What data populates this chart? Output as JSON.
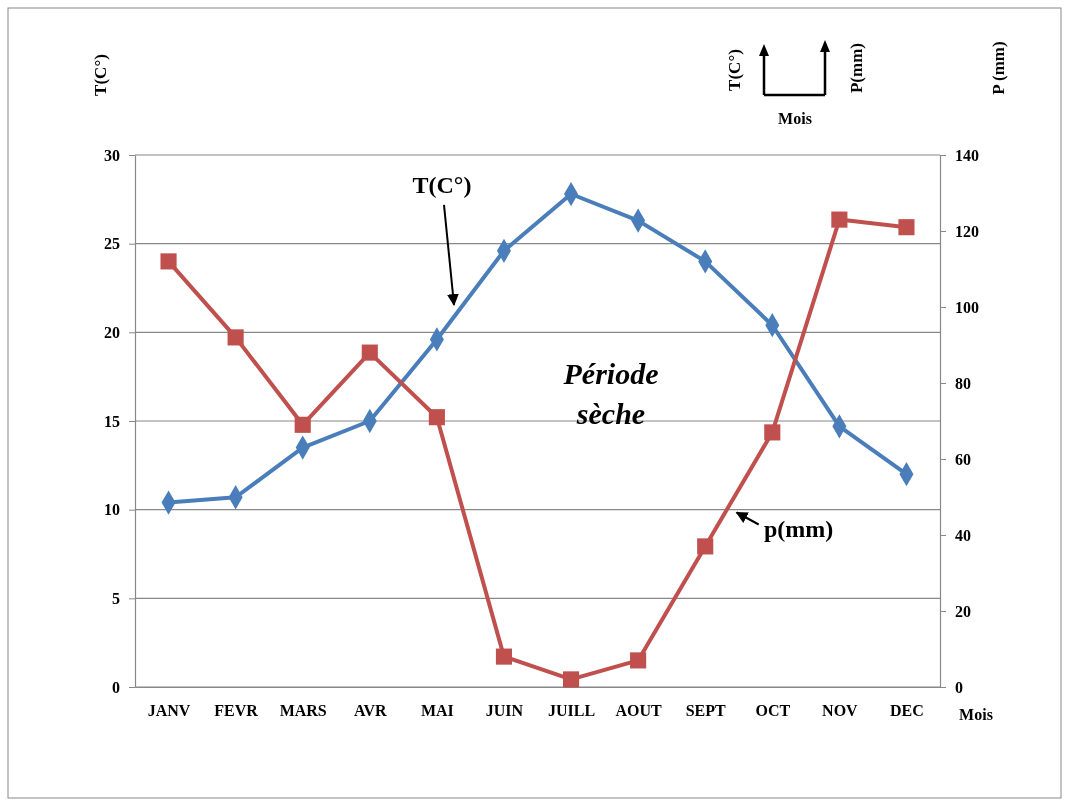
{
  "chart_data": {
    "type": "line",
    "categories": [
      "JANV",
      "FEVR",
      "MARS",
      "AVR",
      "MAI",
      "JUIN",
      "JUILL",
      "AOUT",
      "SEPT",
      "OCT",
      "NOV",
      "DEC"
    ],
    "series": [
      {
        "name": "T(C°)",
        "color": "#4a7ebb",
        "marker": "diamond",
        "values": [
          10.4,
          10.7,
          13.5,
          15.0,
          19.6,
          24.6,
          27.8,
          26.3,
          24.0,
          20.4,
          14.7,
          12.0
        ]
      },
      {
        "name": "p(mm)",
        "color": "#c0504d",
        "marker": "square",
        "axis": "y2",
        "values": [
          112,
          92,
          69,
          88,
          71,
          8,
          2,
          7,
          37,
          67,
          123,
          121
        ]
      }
    ],
    "ylabel": "T(C°)",
    "y2label": "P (mm)",
    "xlabel": "Mois",
    "ylim": [
      0,
      30
    ],
    "yticks": [
      0,
      5,
      10,
      15,
      20,
      25,
      30
    ],
    "y2lim": [
      0,
      140
    ],
    "y2ticks": [
      0,
      20,
      40,
      60,
      80,
      100,
      120,
      140
    ],
    "grid": "y",
    "annotations": [
      "Période sèche",
      "T(C°)",
      "P(mm)",
      "Mois"
    ]
  }
}
